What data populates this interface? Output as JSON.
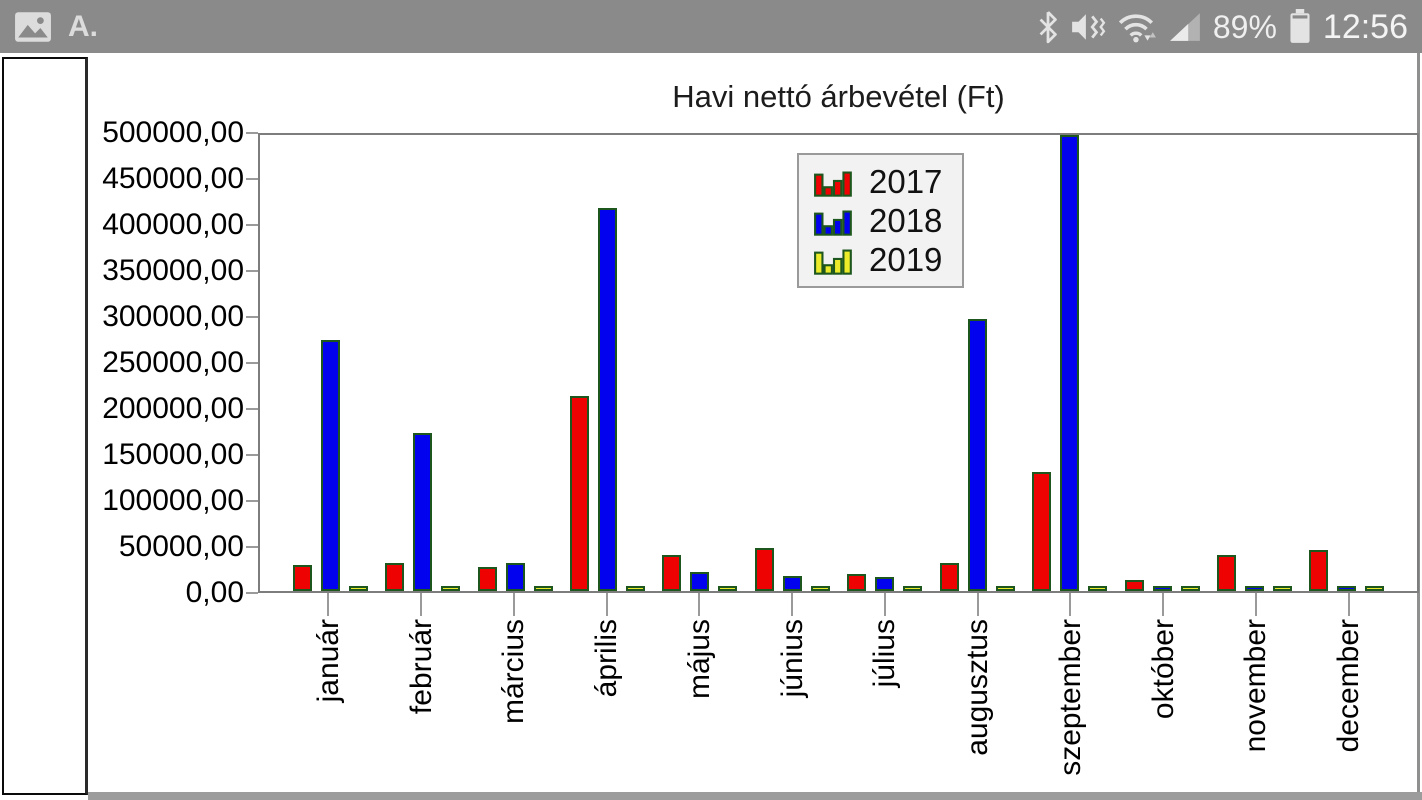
{
  "status_bar": {
    "notification_icons": [
      "image-notification",
      "a-notification"
    ],
    "a_notification_text": "A.",
    "system_icons": [
      "bluetooth",
      "mute-vibrate",
      "wifi",
      "signal-strength",
      "battery"
    ],
    "battery_percent": "89%",
    "time": "12:56"
  },
  "chart_data": {
    "type": "bar",
    "title": "Havi nettó árbevétel (Ft)",
    "categories": [
      "január",
      "február",
      "március",
      "április",
      "május",
      "június",
      "július",
      "augusztus",
      "szeptember",
      "október",
      "november",
      "december"
    ],
    "series": [
      {
        "name": "2017",
        "color": "#ee0202",
        "values": [
          28000,
          31000,
          26000,
          214000,
          40000,
          47000,
          19000,
          31000,
          131000,
          12000,
          40000,
          45000
        ]
      },
      {
        "name": "2018",
        "color": "#0202ee",
        "values": [
          275000,
          173000,
          31000,
          420000,
          21000,
          16000,
          15000,
          298000,
          500000,
          2000,
          2000,
          2000
        ]
      },
      {
        "name": "2019",
        "color": "#ebeb2a",
        "values": [
          2000,
          2000,
          2000,
          2000,
          2000,
          2000,
          2000,
          2000,
          2000,
          2000,
          2000,
          2000
        ]
      }
    ],
    "ylim": [
      0,
      500000
    ],
    "ytick_step": 50000,
    "ytick_labels_top_to_bottom": [
      "500000,00",
      "450000,00",
      "400000,00",
      "350000,00",
      "300000,00",
      "250000,00",
      "200000,00",
      "150000,00",
      "100000,00",
      "50000,00",
      "0,00"
    ],
    "bar_outline_color": "#1d571d",
    "grid": false,
    "legend": {
      "position": "inside-top-center",
      "entries": [
        "2017",
        "2018",
        "2019"
      ]
    }
  }
}
